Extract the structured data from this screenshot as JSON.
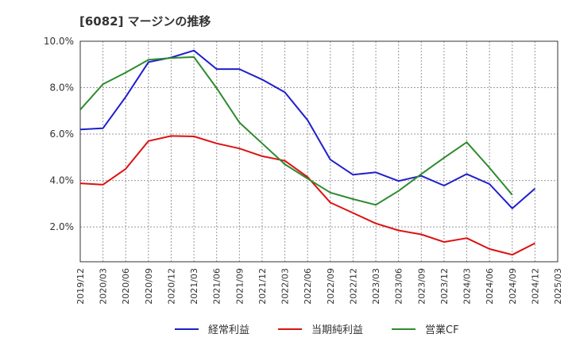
{
  "chart_data": {
    "type": "line",
    "title": "[6082]  マージンの推移",
    "xlabel": "",
    "ylabel": "",
    "x": [
      "2019/12",
      "2020/03",
      "2020/06",
      "2020/09",
      "2020/12",
      "2021/03",
      "2021/06",
      "2021/09",
      "2021/12",
      "2022/03",
      "2022/06",
      "2022/09",
      "2022/12",
      "2023/03",
      "2023/06",
      "2023/09",
      "2023/12",
      "2024/03",
      "2024/06",
      "2024/09",
      "2024/12",
      "2025/03"
    ],
    "yticks": [
      "2.0%",
      "4.0%",
      "6.0%",
      "8.0%",
      "10.0%"
    ],
    "ylim": [
      0.5,
      10.0
    ],
    "grid": true,
    "legend_position": "bottom",
    "colors": {
      "keijo": "#1f1fcc",
      "junri": "#dd1111",
      "eigyo_cf": "#2e8b2e",
      "grid": "#999999",
      "axis": "#333333"
    },
    "series": [
      {
        "key": "keijo",
        "name": "経常利益",
        "values": [
          6.2,
          6.25,
          7.6,
          9.1,
          9.3,
          9.6,
          8.8,
          8.8,
          8.35,
          7.8,
          6.6,
          4.9,
          4.25,
          4.35,
          3.98,
          4.2,
          3.78,
          4.28,
          3.85,
          2.8,
          3.65,
          null
        ]
      },
      {
        "key": "junri",
        "name": "当期純利益",
        "values": [
          3.88,
          3.82,
          4.5,
          5.7,
          5.92,
          5.9,
          5.6,
          5.38,
          5.05,
          4.85,
          4.15,
          3.05,
          2.6,
          2.15,
          1.85,
          1.68,
          1.35,
          1.52,
          1.05,
          0.8,
          1.3,
          null
        ]
      },
      {
        "key": "eigyo_cf",
        "name": "営業CF",
        "values": [
          7.05,
          8.15,
          8.65,
          9.2,
          9.28,
          9.32,
          7.98,
          6.5,
          5.6,
          4.7,
          4.08,
          3.48,
          3.2,
          2.95,
          3.55,
          4.28,
          4.98,
          5.65,
          4.55,
          3.38,
          null,
          null
        ]
      }
    ]
  }
}
